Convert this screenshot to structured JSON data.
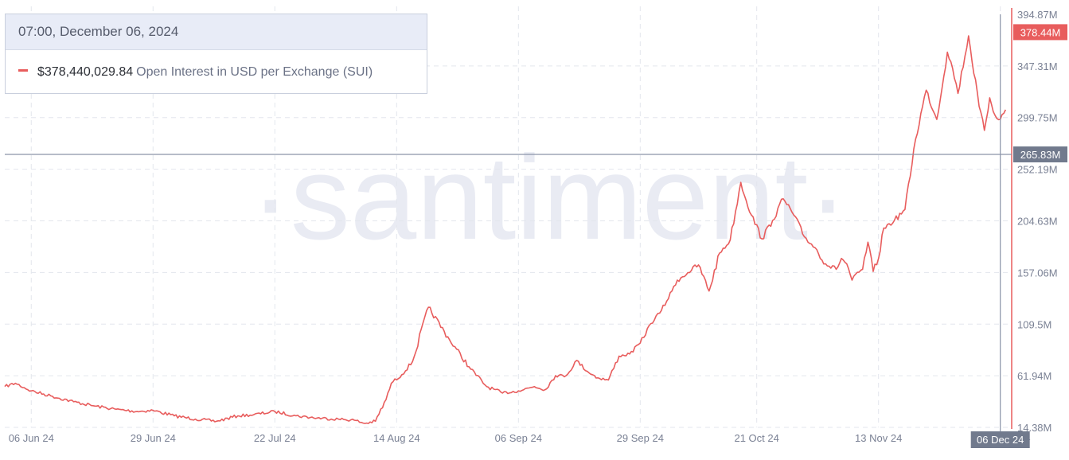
{
  "watermark": "·santiment·",
  "tooltip": {
    "date": "07:00, December 06, 2024",
    "value": "$378,440,029.84",
    "series_label": "Open Interest in USD per Exchange (SUI)"
  },
  "colors": {
    "line": "#e85d5d",
    "grid": "#e3e6ed",
    "crosshair": "#8a93a8",
    "axis_text": "#7a8194",
    "badge_dark": "#717a8d"
  },
  "chart_data": {
    "type": "line",
    "title": "",
    "xlabel": "",
    "ylabel": "",
    "grid": true,
    "x_range": [
      "2024-06-01",
      "2024-12-08"
    ],
    "ylim": [
      14.38,
      394.87
    ],
    "y_unit": "M",
    "x_ticks": [
      "06 Jun 24",
      "29 Jun 24",
      "22 Jul 24",
      "14 Aug 24",
      "06 Sep 24",
      "29 Sep 24",
      "21 Oct 24",
      "13 Nov 24",
      "06 Dec 24"
    ],
    "x_tick_dates": [
      "2024-06-06",
      "2024-06-29",
      "2024-07-22",
      "2024-08-14",
      "2024-09-06",
      "2024-09-29",
      "2024-10-21",
      "2024-11-13",
      "2024-12-06"
    ],
    "y_ticks": [
      "394.87M",
      "347.31M",
      "299.75M",
      "252.19M",
      "204.63M",
      "157.06M",
      "109.5M",
      "61.94M",
      "14.38M"
    ],
    "y_tick_values": [
      394.87,
      347.31,
      299.75,
      252.19,
      204.63,
      157.06,
      109.5,
      61.94,
      14.38
    ],
    "right_edge_label": "24",
    "crosshair": {
      "date_label": "06 Dec 24",
      "date": "2024-12-06",
      "value_label": "265.83M",
      "value": 265.83
    },
    "last_value": {
      "label": "378.44M",
      "value": 378.44
    },
    "series": [
      {
        "name": "Open Interest in USD per Exchange (SUI)",
        "x": [
          "2024-06-01",
          "2024-06-03",
          "2024-06-06",
          "2024-06-10",
          "2024-06-14",
          "2024-06-18",
          "2024-06-22",
          "2024-06-26",
          "2024-06-29",
          "2024-07-03",
          "2024-07-07",
          "2024-07-11",
          "2024-07-15",
          "2024-07-18",
          "2024-07-22",
          "2024-07-26",
          "2024-07-30",
          "2024-08-03",
          "2024-08-06",
          "2024-08-08",
          "2024-08-10",
          "2024-08-12",
          "2024-08-13",
          "2024-08-15",
          "2024-08-17",
          "2024-08-20",
          "2024-08-24",
          "2024-08-28",
          "2024-08-31",
          "2024-09-03",
          "2024-09-06",
          "2024-09-09",
          "2024-09-11",
          "2024-09-13",
          "2024-09-15",
          "2024-09-17",
          "2024-09-19",
          "2024-09-21",
          "2024-09-23",
          "2024-09-25",
          "2024-09-27",
          "2024-09-29",
          "2024-10-01",
          "2024-10-03",
          "2024-10-05",
          "2024-10-06",
          "2024-10-08",
          "2024-10-10",
          "2024-10-12",
          "2024-10-14",
          "2024-10-16",
          "2024-10-18",
          "2024-10-20",
          "2024-10-22",
          "2024-10-24",
          "2024-10-26",
          "2024-10-28",
          "2024-10-30",
          "2024-11-01",
          "2024-11-03",
          "2024-11-05",
          "2024-11-06",
          "2024-11-07",
          "2024-11-08",
          "2024-11-10",
          "2024-11-11",
          "2024-11-12",
          "2024-11-13",
          "2024-11-14",
          "2024-11-16",
          "2024-11-18",
          "2024-11-20",
          "2024-11-22",
          "2024-11-24",
          "2024-11-26",
          "2024-11-27",
          "2024-11-28",
          "2024-11-30",
          "2024-12-02",
          "2024-12-03",
          "2024-12-04",
          "2024-12-05",
          "2024-12-06",
          "2024-12-07"
        ],
        "y": [
          52,
          55,
          48,
          43,
          38,
          34,
          31,
          29,
          30,
          25,
          22,
          20,
          25,
          26,
          29,
          25,
          23,
          22,
          21,
          18,
          20,
          40,
          55,
          63,
          75,
          125,
          95,
          68,
          52,
          46,
          48,
          52,
          49,
          62,
          62,
          76,
          66,
          60,
          58,
          80,
          82,
          92,
          110,
          122,
          140,
          150,
          157,
          164,
          140,
          175,
          187,
          240,
          210,
          188,
          205,
          225,
          210,
          190,
          180,
          165,
          160,
          170,
          165,
          150,
          160,
          185,
          158,
          170,
          198,
          205,
          215,
          280,
          325,
          298,
          360,
          345,
          322,
          375,
          310,
          288,
          318,
          302,
          298,
          307
        ],
        "note": "approximate daily trace read from the line"
      }
    ]
  }
}
